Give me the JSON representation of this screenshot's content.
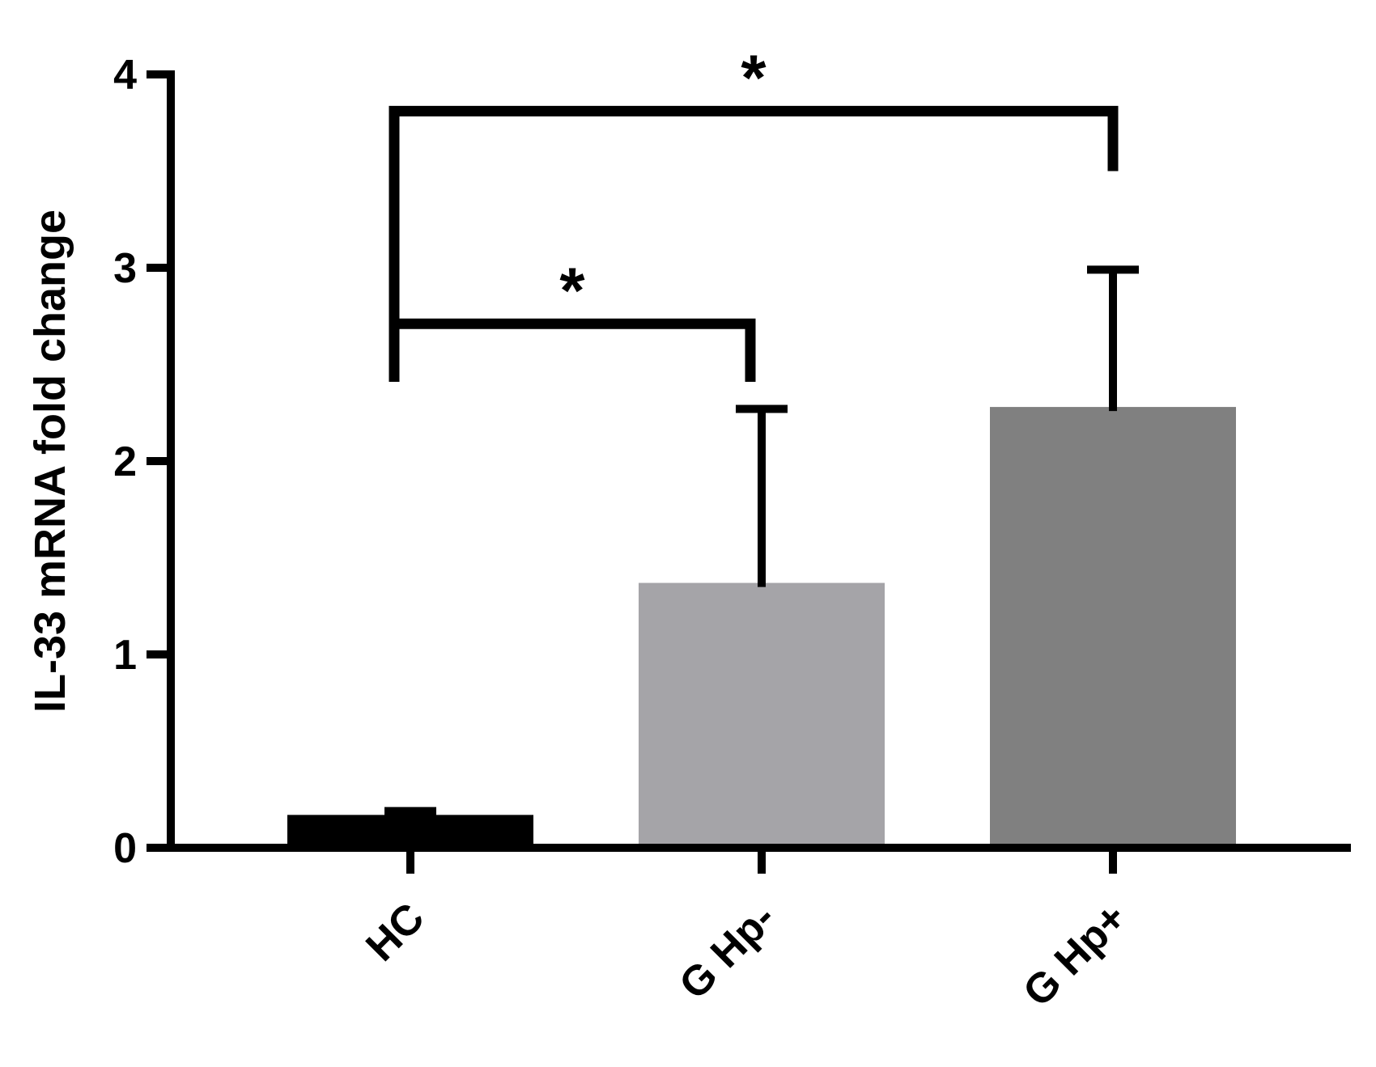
{
  "chart_data": {
    "type": "bar",
    "y_label": "IL-33 mRNA fold change",
    "categories": [
      "HC",
      "G Hp-",
      "G Hp+"
    ],
    "values": [
      0.17,
      1.37,
      2.28
    ],
    "errors": [
      0.02,
      0.9,
      0.71
    ],
    "colors": [
      "#000000",
      "#a5a4a8",
      "#808080"
    ],
    "ylim": [
      0,
      4
    ],
    "yticks": [
      0,
      1,
      2,
      3,
      4
    ],
    "annotations": [
      {
        "text": "*",
        "from": "HC",
        "to": "G Hp-"
      },
      {
        "text": "*",
        "from": "HC",
        "to": "G Hp+"
      }
    ]
  }
}
